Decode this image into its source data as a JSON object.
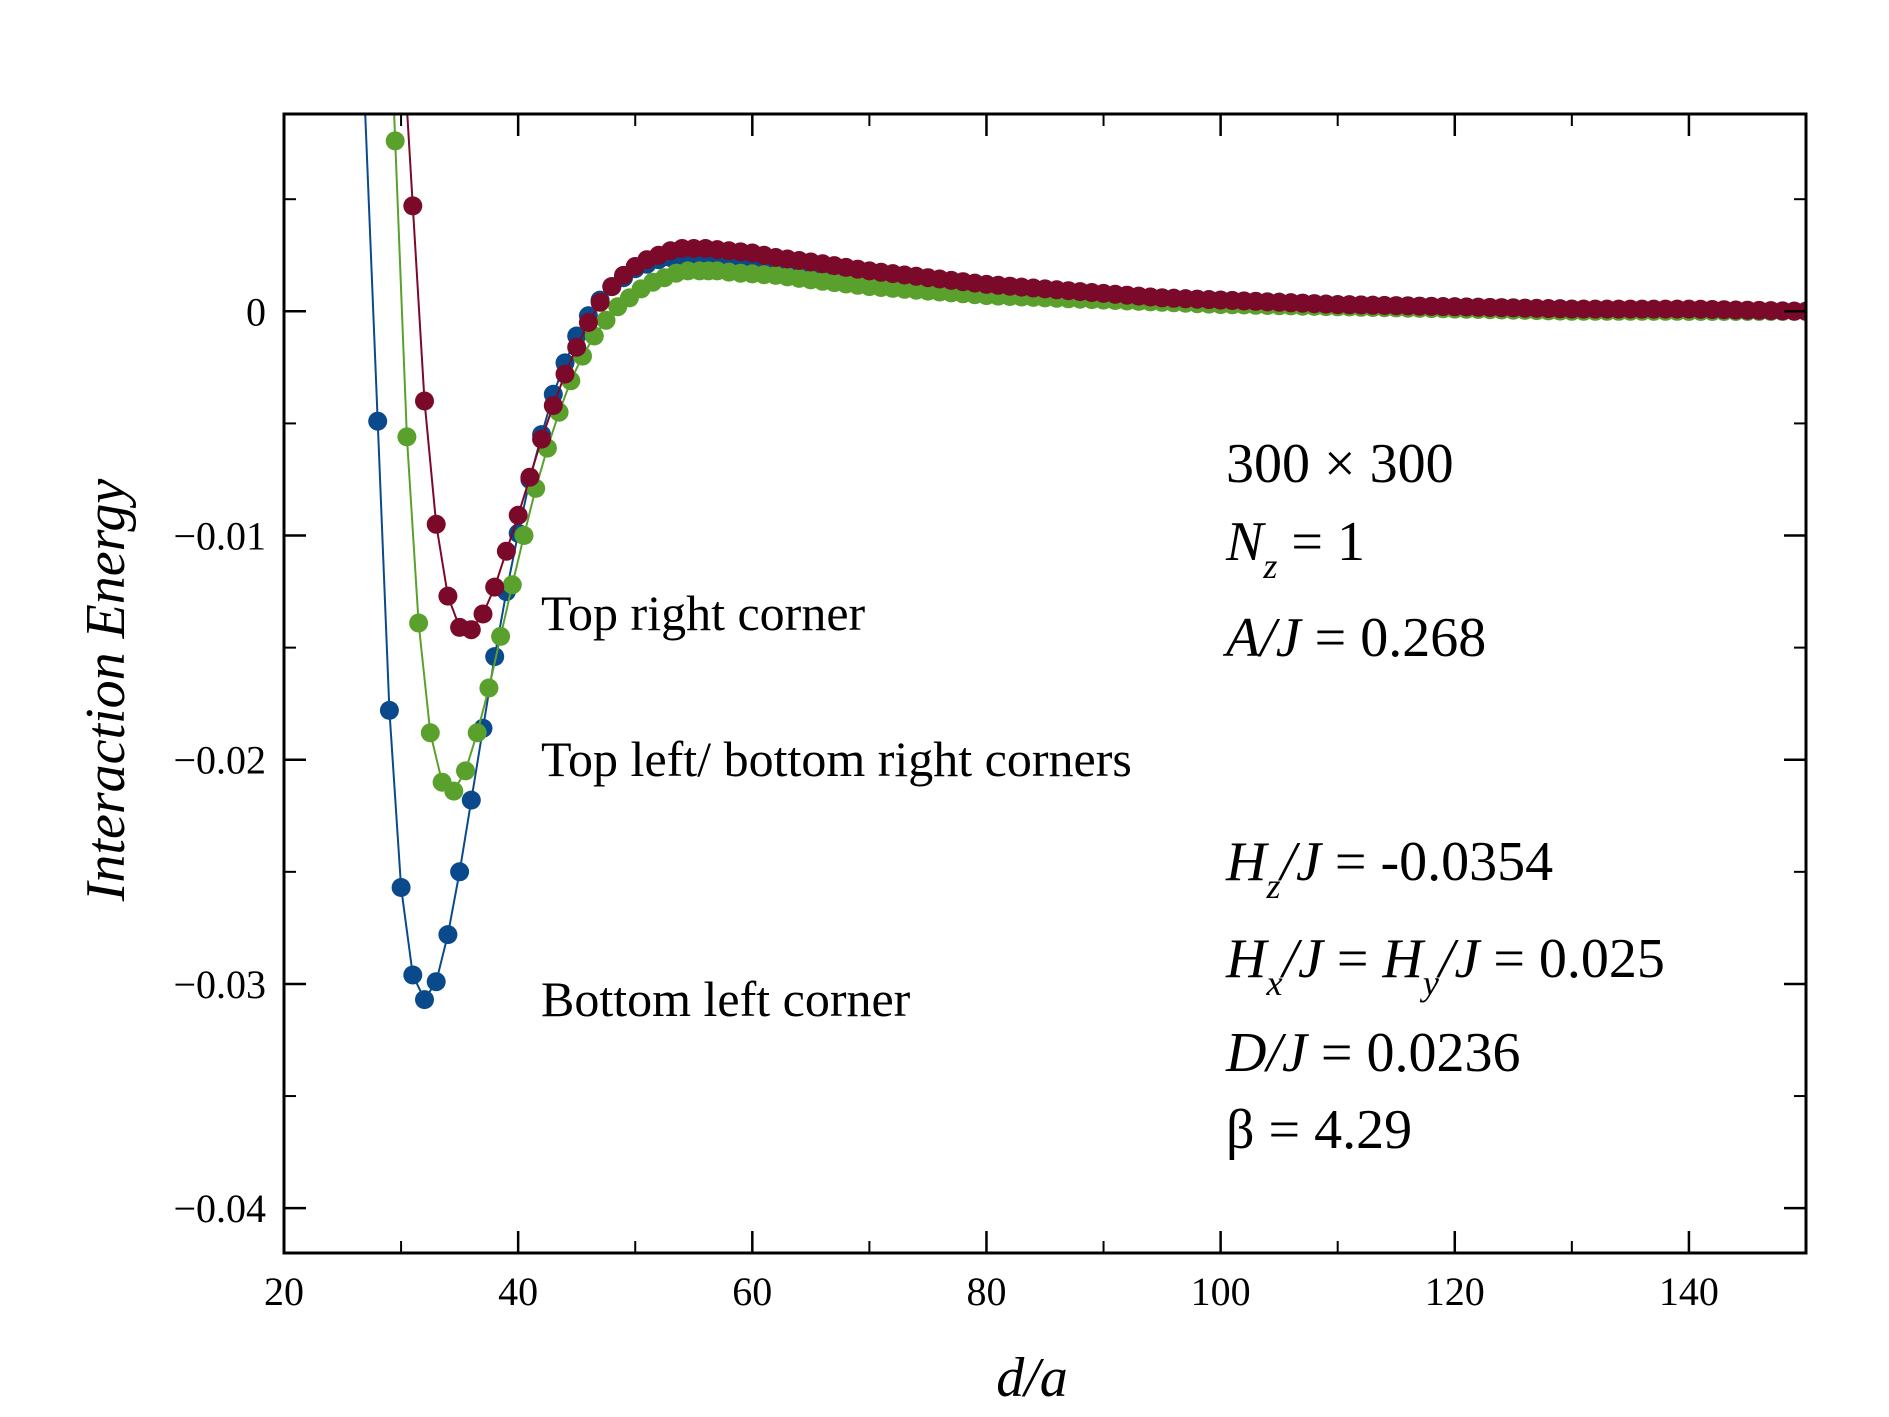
{
  "chart_data": {
    "type": "line",
    "title": "",
    "xlabel": "d/a",
    "ylabel": "Interaction Energy",
    "xlim": [
      20,
      150
    ],
    "ylim": [
      -0.042,
      0.0088
    ],
    "xticks": [
      20,
      40,
      60,
      80,
      100,
      120,
      140
    ],
    "xtick_labels": [
      "20",
      "40",
      "60",
      "80",
      "100",
      "120",
      "140"
    ],
    "yticks": [
      0,
      -0.01,
      -0.02,
      -0.03,
      -0.04
    ],
    "ytick_labels": [
      "0",
      "−0.01",
      "−0.02",
      "−0.03",
      "−0.04"
    ],
    "grid": false,
    "series_labels": [
      {
        "text": "Top right corner",
        "series": "Top right corner"
      },
      {
        "text": "Top left/ bottom right corners",
        "series": "Top left/ bottom right corners"
      },
      {
        "text": "Bottom left corner",
        "series": "Bottom left corner"
      }
    ],
    "series": [
      {
        "name": "Top right corner",
        "color": "#7b0a2a",
        "points": [
          [
            31.0,
            0.0047
          ],
          [
            32.0,
            -0.004
          ],
          [
            33.0,
            -0.0095
          ],
          [
            34.0,
            -0.0127
          ],
          [
            35.0,
            -0.0141
          ],
          [
            36.0,
            -0.0142
          ],
          [
            37.0,
            -0.0135
          ],
          [
            38.0,
            -0.0123
          ],
          [
            39.0,
            -0.0107
          ],
          [
            40.0,
            -0.0091
          ],
          [
            41.0,
            -0.0074
          ],
          [
            42.0,
            -0.0057
          ],
          [
            43.0,
            -0.0042
          ],
          [
            44.0,
            -0.0028
          ],
          [
            45.0,
            -0.0016
          ],
          [
            46.0,
            -0.0005
          ],
          [
            47.0,
            0.0004
          ],
          [
            48.0,
            0.0011
          ],
          [
            49.0,
            0.0016
          ],
          [
            50.0,
            0.002
          ],
          [
            51.0,
            0.0023
          ],
          [
            52.0,
            0.0025
          ],
          [
            53.0,
            0.0027
          ],
          [
            54.0,
            0.0028
          ],
          [
            55.0,
            0.0028
          ],
          [
            56.0,
            0.0028
          ],
          [
            58.0,
            0.0027
          ],
          [
            60.0,
            0.0026
          ],
          [
            62.0,
            0.0024
          ],
          [
            65.0,
            0.0022
          ],
          [
            70.0,
            0.0018
          ],
          [
            75.0,
            0.0015
          ],
          [
            80.0,
            0.0012
          ],
          [
            85.0,
            0.001
          ],
          [
            90.0,
            0.0008
          ],
          [
            95.0,
            0.0006
          ],
          [
            100.0,
            0.0005
          ],
          [
            110.0,
            0.0003
          ],
          [
            120.0,
            0.0002
          ],
          [
            130.0,
            0.0001
          ],
          [
            140.0,
            0.0001
          ],
          [
            150.0,
            0.0
          ]
        ]
      },
      {
        "name": "Top left/ bottom right corners",
        "color": "#5aa02c",
        "points": [
          [
            29.5,
            0.0076
          ],
          [
            30.5,
            -0.0056
          ],
          [
            31.5,
            -0.0139
          ],
          [
            32.5,
            -0.0188
          ],
          [
            33.5,
            -0.021
          ],
          [
            34.5,
            -0.0214
          ],
          [
            35.5,
            -0.0205
          ],
          [
            36.5,
            -0.0188
          ],
          [
            37.5,
            -0.0168
          ],
          [
            38.5,
            -0.0145
          ],
          [
            39.5,
            -0.0122
          ],
          [
            40.5,
            -0.01
          ],
          [
            41.5,
            -0.0079
          ],
          [
            42.5,
            -0.0061
          ],
          [
            43.5,
            -0.0045
          ],
          [
            44.5,
            -0.0031
          ],
          [
            45.5,
            -0.002
          ],
          [
            46.5,
            -0.0011
          ],
          [
            47.5,
            -0.0004
          ],
          [
            48.5,
            0.0002
          ],
          [
            49.5,
            0.0006
          ],
          [
            50.5,
            0.001
          ],
          [
            51.5,
            0.0013
          ],
          [
            52.5,
            0.0015
          ],
          [
            53.5,
            0.0017
          ],
          [
            54.5,
            0.0018
          ],
          [
            55.5,
            0.0018
          ],
          [
            57.0,
            0.0018
          ],
          [
            59.0,
            0.0017
          ],
          [
            62.0,
            0.0016
          ],
          [
            65.0,
            0.0014
          ],
          [
            70.0,
            0.0011
          ],
          [
            75.0,
            0.0009
          ],
          [
            80.0,
            0.0007
          ],
          [
            85.0,
            0.0006
          ],
          [
            90.0,
            0.0005
          ],
          [
            100.0,
            0.0003
          ],
          [
            110.0,
            0.0002
          ],
          [
            120.0,
            0.0001
          ],
          [
            130.0,
            0.0
          ],
          [
            140.0,
            0.0
          ],
          [
            150.0,
            0.0
          ]
        ]
      },
      {
        "name": "Bottom left corner",
        "color": "#0a4a8c",
        "points": [
          [
            28.0,
            -0.0049
          ],
          [
            29.0,
            -0.0178
          ],
          [
            30.0,
            -0.0257
          ],
          [
            31.0,
            -0.0296
          ],
          [
            32.0,
            -0.0307
          ],
          [
            33.0,
            -0.0299
          ],
          [
            34.0,
            -0.0278
          ],
          [
            35.0,
            -0.025
          ],
          [
            36.0,
            -0.0218
          ],
          [
            37.0,
            -0.0186
          ],
          [
            38.0,
            -0.0154
          ],
          [
            39.0,
            -0.0125
          ],
          [
            40.0,
            -0.0099
          ],
          [
            41.0,
            -0.0075
          ],
          [
            42.0,
            -0.0055
          ],
          [
            43.0,
            -0.0037
          ],
          [
            44.0,
            -0.0023
          ],
          [
            45.0,
            -0.0011
          ],
          [
            46.0,
            -0.0002
          ],
          [
            47.0,
            0.0005
          ],
          [
            48.0,
            0.0011
          ],
          [
            49.0,
            0.0015
          ],
          [
            50.0,
            0.0019
          ],
          [
            51.0,
            0.0021
          ],
          [
            52.0,
            0.0023
          ],
          [
            53.0,
            0.0024
          ],
          [
            54.0,
            0.0025
          ],
          [
            55.0,
            0.0025
          ],
          [
            56.0,
            0.0025
          ],
          [
            58.0,
            0.0024
          ],
          [
            60.0,
            0.0023
          ],
          [
            63.0,
            0.0021
          ],
          [
            66.0,
            0.0019
          ],
          [
            70.0,
            0.0017
          ],
          [
            75.0,
            0.0014
          ],
          [
            80.0,
            0.0011
          ],
          [
            85.0,
            0.0009
          ],
          [
            90.0,
            0.0007
          ],
          [
            100.0,
            0.0005
          ],
          [
            110.0,
            0.0003
          ],
          [
            120.0,
            0.0002
          ],
          [
            130.0,
            0.0001
          ],
          [
            140.0,
            0.0
          ],
          [
            150.0,
            0.0
          ]
        ]
      }
    ]
  },
  "annotations": {
    "lattice": "300 × 300",
    "nz": {
      "sym": "N",
      "sub": "z",
      "rest": " = 1"
    },
    "aj": {
      "lhs": "A/J",
      "rest": "  = 0.268"
    },
    "hz": {
      "sym": "H",
      "sub": "z",
      "lhs_tail": "/J",
      "rest": "  = -0.0354"
    },
    "hxy": {
      "sym1": "H",
      "sub1": "x",
      "lhs_tail1": "/J",
      "mid": "  = ",
      "sym2": "H",
      "sub2": "y",
      "lhs_tail2": "/J",
      "rest": " = 0.025"
    },
    "dj": {
      "lhs": "D/J",
      "rest": " =  0.0236"
    },
    "beta": "β = 4.29"
  }
}
